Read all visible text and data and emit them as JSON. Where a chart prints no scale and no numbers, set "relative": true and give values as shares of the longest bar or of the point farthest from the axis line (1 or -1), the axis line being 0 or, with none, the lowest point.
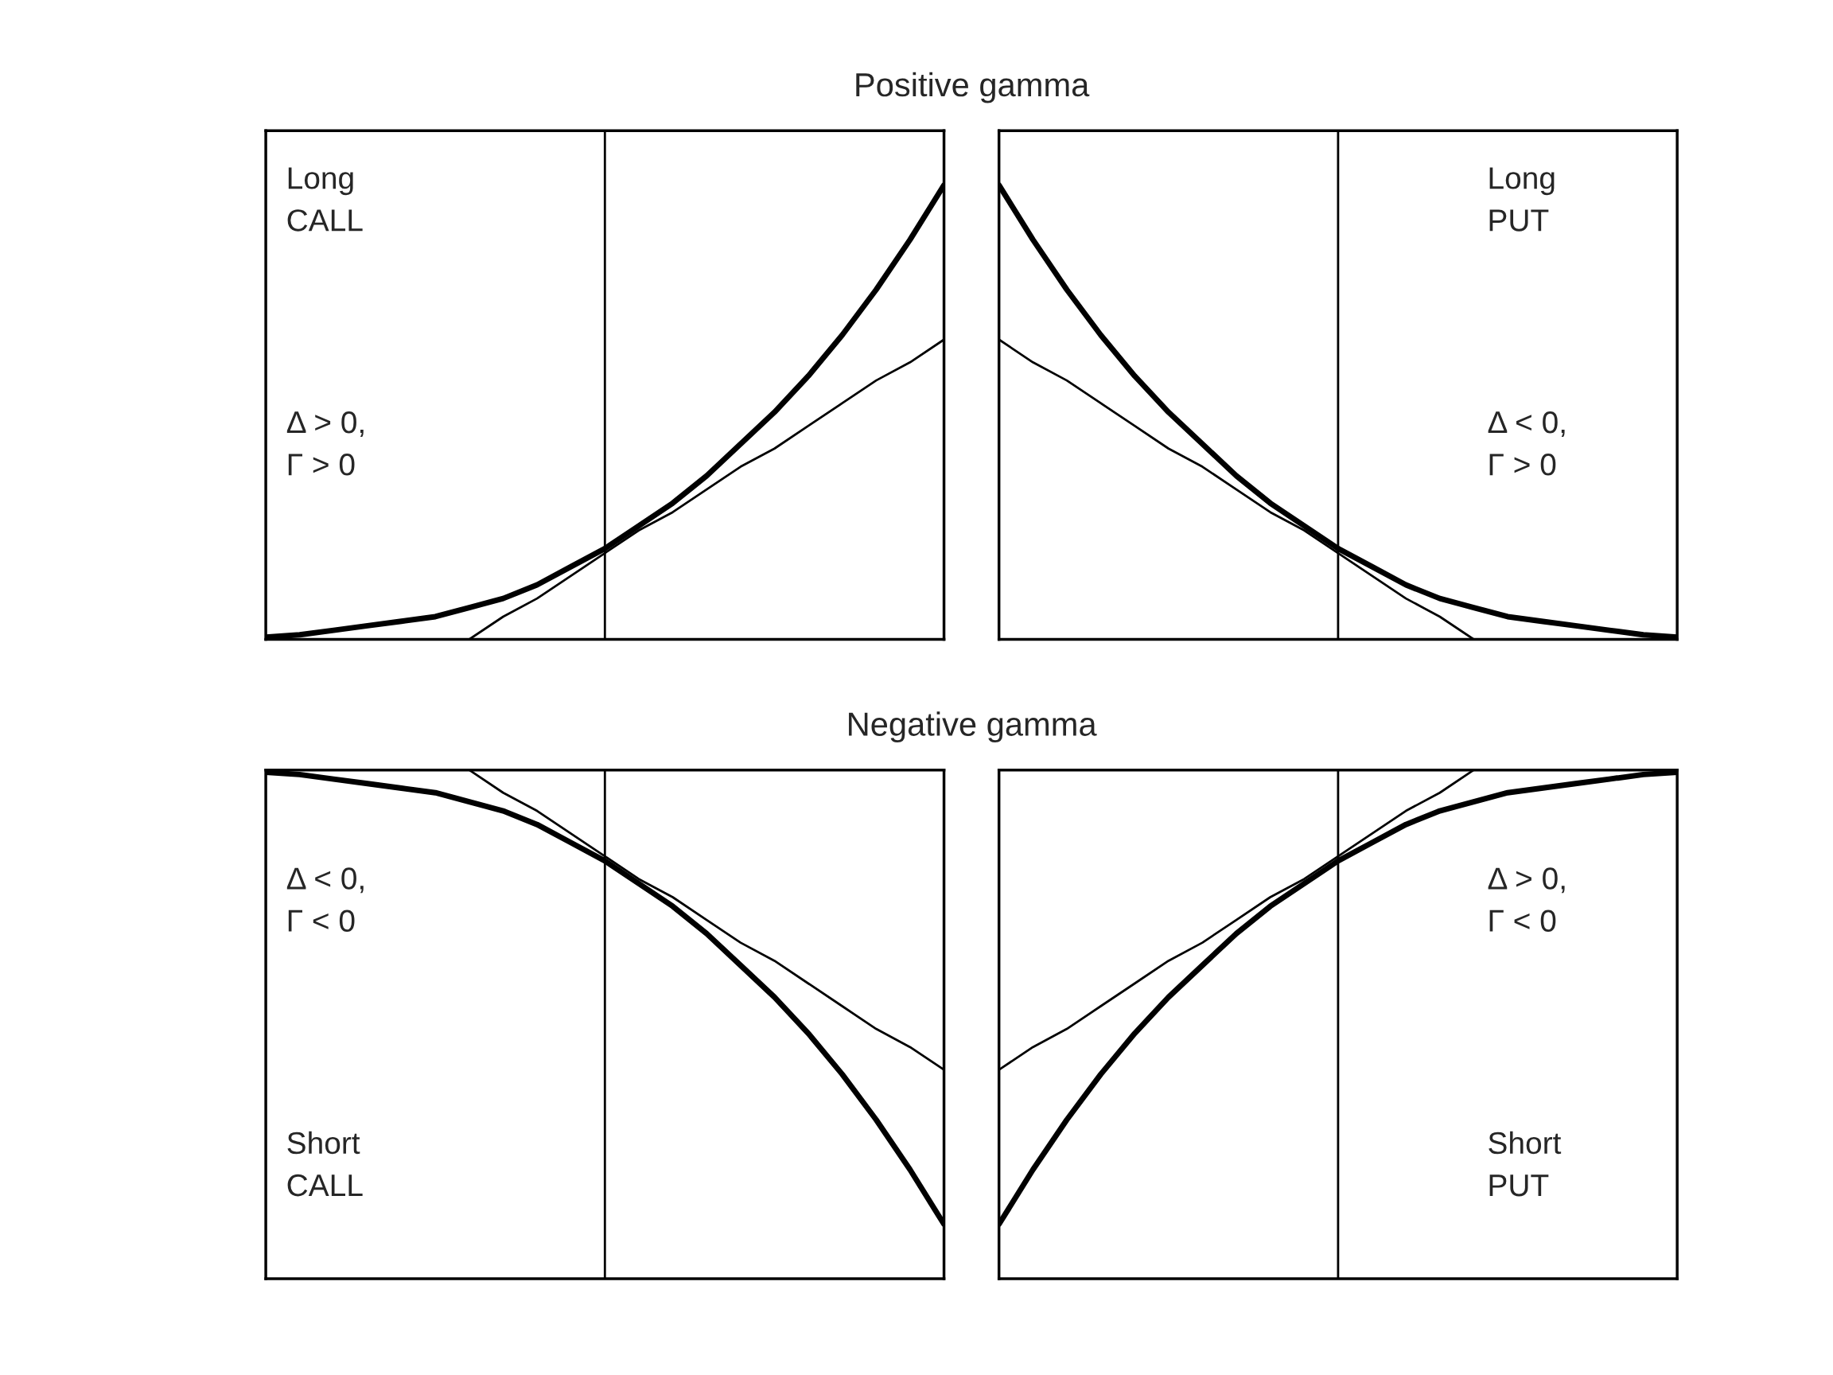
{
  "chart_data": [
    {
      "type": "line",
      "title": "Positive gamma",
      "relative": true,
      "categories": [
        null,
        null,
        null,
        null,
        null,
        null,
        null,
        null,
        null,
        null,
        null,
        null,
        null,
        null,
        null,
        null,
        null,
        null,
        null,
        null,
        null
      ],
      "line_style": "solid",
      "annotations": [
        "Long\nCALL",
        "Δ > 0,\nΓ > 0"
      ],
      "series": [
        {
          "color": "#000000",
          "values": [
            0.005,
            0.01,
            0.02,
            0.03,
            0.04,
            0.05,
            0.07,
            0.09,
            0.12,
            0.16,
            0.2,
            0.25,
            0.3,
            0.36,
            0.43,
            0.5,
            0.58,
            0.67,
            0.77,
            0.88,
            1.0
          ]
        },
        {
          "color": "#000000",
          "values": [
            null,
            null,
            null,
            null,
            null,
            null,
            0,
            0.05,
            0.09,
            0.14,
            0.19,
            0.24,
            0.28,
            0.33,
            0.38,
            0.42,
            0.47,
            0.52,
            0.57,
            0.61,
            0.66
          ]
        }
      ]
    },
    {
      "type": "line",
      "relative": true,
      "categories": [
        null,
        null,
        null,
        null,
        null,
        null,
        null,
        null,
        null,
        null,
        null,
        null,
        null,
        null,
        null,
        null,
        null,
        null,
        null,
        null,
        null
      ],
      "line_style": "solid",
      "annotations": [
        "Long\nPUT",
        "Δ < 0,\nΓ > 0"
      ],
      "series": [
        {
          "color": "#000000",
          "values": [
            1.0,
            0.88,
            0.77,
            0.67,
            0.58,
            0.5,
            0.43,
            0.36,
            0.3,
            0.25,
            0.2,
            0.16,
            0.12,
            0.09,
            0.07,
            0.05,
            0.04,
            0.03,
            0.02,
            0.01,
            0.005
          ]
        },
        {
          "color": "#000000",
          "values": [
            0.66,
            0.61,
            0.57,
            0.52,
            0.47,
            0.42,
            0.38,
            0.33,
            0.28,
            0.24,
            0.19,
            0.14,
            0.09,
            0.05,
            0,
            null,
            null,
            null,
            null,
            null,
            null
          ]
        }
      ]
    },
    {
      "type": "line",
      "title": "Negative gamma",
      "relative": true,
      "categories": [
        null,
        null,
        null,
        null,
        null,
        null,
        null,
        null,
        null,
        null,
        null,
        null,
        null,
        null,
        null,
        null,
        null,
        null,
        null,
        null,
        null
      ],
      "line_style": "solid",
      "annotations": [
        "Short\nCALL",
        "Δ < 0,\nΓ < 0"
      ],
      "series": [
        {
          "color": "#000000",
          "values": [
            -0.005,
            -0.01,
            -0.02,
            -0.03,
            -0.04,
            -0.05,
            -0.07,
            -0.09,
            -0.12,
            -0.16,
            -0.2,
            -0.25,
            -0.3,
            -0.36,
            -0.43,
            -0.5,
            -0.58,
            -0.67,
            -0.77,
            -0.88,
            -1.0
          ]
        },
        {
          "color": "#000000",
          "values": [
            null,
            null,
            null,
            null,
            null,
            null,
            0,
            -0.05,
            -0.09,
            -0.14,
            -0.19,
            -0.24,
            -0.28,
            -0.33,
            -0.38,
            -0.42,
            -0.47,
            -0.52,
            -0.57,
            -0.61,
            -0.66
          ]
        }
      ]
    },
    {
      "type": "line",
      "relative": true,
      "categories": [
        null,
        null,
        null,
        null,
        null,
        null,
        null,
        null,
        null,
        null,
        null,
        null,
        null,
        null,
        null,
        null,
        null,
        null,
        null,
        null,
        null
      ],
      "line_style": "solid",
      "annotations": [
        "Short\nPUT",
        "Δ > 0,\nΓ < 0"
      ],
      "series": [
        {
          "color": "#000000",
          "values": [
            -1.0,
            -0.88,
            -0.77,
            -0.67,
            -0.58,
            -0.5,
            -0.43,
            -0.36,
            -0.3,
            -0.25,
            -0.2,
            -0.16,
            -0.12,
            -0.09,
            -0.07,
            -0.05,
            -0.04,
            -0.03,
            -0.02,
            -0.01,
            -0.005
          ]
        },
        {
          "color": "#000000",
          "values": [
            -0.66,
            -0.61,
            -0.57,
            -0.52,
            -0.47,
            -0.42,
            -0.38,
            -0.33,
            -0.28,
            -0.24,
            -0.19,
            -0.14,
            -0.09,
            -0.05,
            0,
            null,
            null,
            null,
            null,
            null,
            null
          ]
        }
      ]
    }
  ]
}
